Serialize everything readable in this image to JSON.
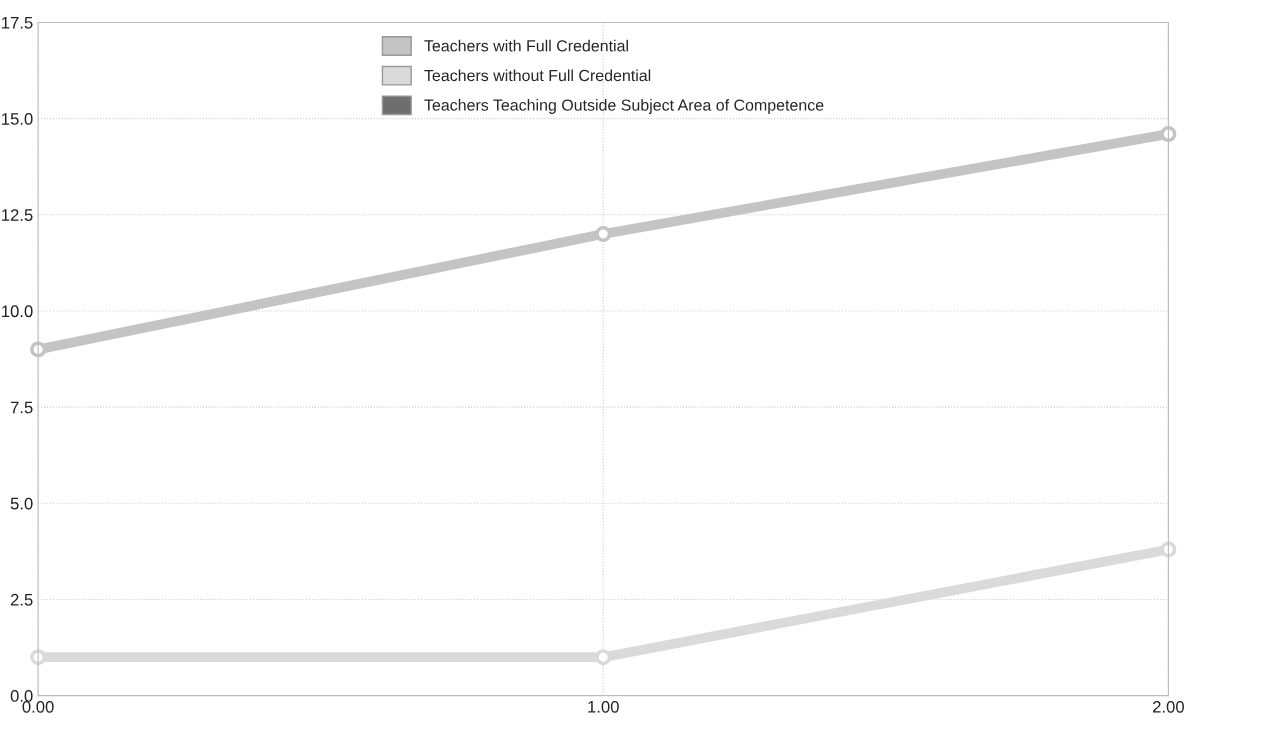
{
  "chart_data": {
    "type": "line",
    "x": [
      0,
      1,
      2
    ],
    "series": [
      {
        "name": "Teachers with Full Credential",
        "color": "#c4c4c4",
        "values": [
          9,
          12,
          14.6
        ]
      },
      {
        "name": "Teachers without Full Credential",
        "color": "#dadada",
        "values": [
          1,
          1,
          3.8
        ]
      },
      {
        "name": "Teachers Teaching Outside Subject Area of Competence",
        "color": "#6e6e6e",
        "values": [
          null,
          null,
          null
        ]
      }
    ],
    "xlim": [
      0,
      2
    ],
    "xticks": [
      {
        "value": 0,
        "label": "0.00"
      },
      {
        "value": 1,
        "label": "1.00"
      },
      {
        "value": 2,
        "label": "2.00"
      }
    ],
    "ylim": [
      0,
      17.5
    ],
    "yticks": [
      {
        "value": 0,
        "label": "0.0"
      },
      {
        "value": 2.5,
        "label": "2.5"
      },
      {
        "value": 5,
        "label": "5.0"
      },
      {
        "value": 7.5,
        "label": "7.5"
      },
      {
        "value": 10,
        "label": "10.0"
      },
      {
        "value": 12.5,
        "label": "12.5"
      },
      {
        "value": 15,
        "label": "15.0"
      },
      {
        "value": 17.5,
        "label": "17.5"
      }
    ],
    "grid": true,
    "legend": "top",
    "marker": "circle",
    "line_style": "solid"
  }
}
